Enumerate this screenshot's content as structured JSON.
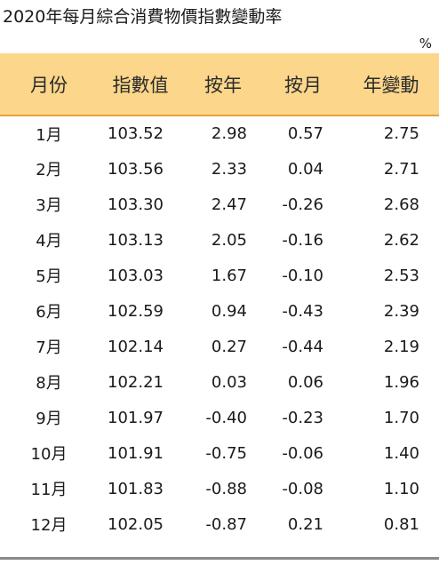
{
  "title": "2020年每月綜合消費物價指數變動率",
  "unit": "%",
  "table": {
    "headers": [
      "月份",
      "指數值",
      "按年",
      "按月",
      "年變動"
    ],
    "rows": [
      [
        "1月",
        "103.52",
        "2.98",
        "0.57",
        "2.75"
      ],
      [
        "2月",
        "103.56",
        "2.33",
        "0.04",
        "2.71"
      ],
      [
        "3月",
        "103.30",
        "2.47",
        "-0.26",
        "2.68"
      ],
      [
        "4月",
        "103.13",
        "2.05",
        "-0.16",
        "2.62"
      ],
      [
        "5月",
        "103.03",
        "1.67",
        "-0.10",
        "2.53"
      ],
      [
        "6月",
        "102.59",
        "0.94",
        "-0.43",
        "2.39"
      ],
      [
        "7月",
        "102.14",
        "0.27",
        "-0.44",
        "2.19"
      ],
      [
        "8月",
        "102.21",
        "0.03",
        "0.06",
        "1.96"
      ],
      [
        "9月",
        "101.97",
        "-0.40",
        "-0.23",
        "1.70"
      ],
      [
        "10月",
        "101.91",
        "-0.75",
        "-0.06",
        "1.40"
      ],
      [
        "11月",
        "101.83",
        "-0.88",
        "-0.08",
        "1.10"
      ],
      [
        "12月",
        "102.05",
        "-0.87",
        "0.21",
        "0.81"
      ]
    ]
  },
  "colors": {
    "header_background": "#fbd68b",
    "header_rule": "#e3a23b",
    "bottom_rule": "#8a8a8a"
  }
}
